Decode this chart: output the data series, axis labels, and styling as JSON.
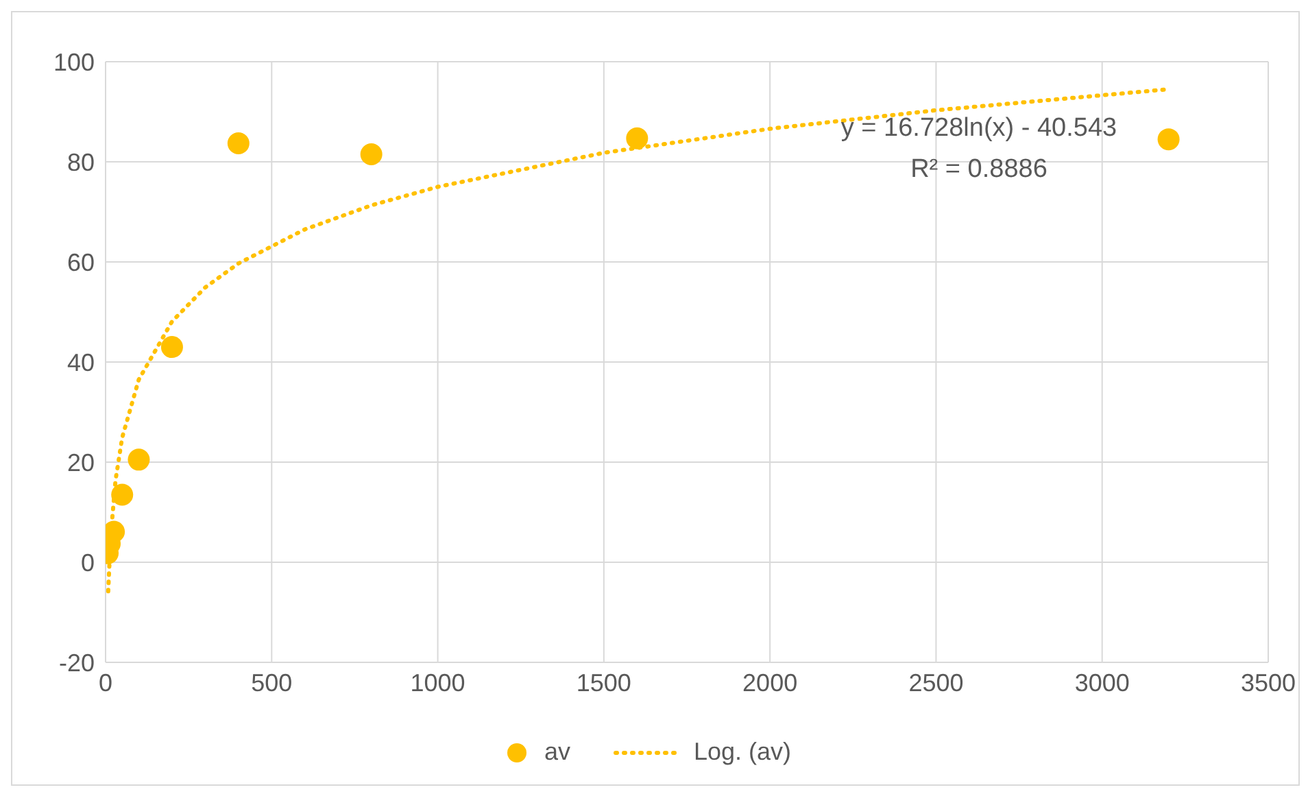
{
  "chart_data": {
    "type": "scatter",
    "xlim": [
      0,
      3500
    ],
    "xticks": [
      0,
      500,
      1000,
      1500,
      2000,
      2500,
      3000,
      3500
    ],
    "ylim": [
      -20,
      100
    ],
    "yticks": [
      -20,
      0,
      20,
      40,
      60,
      80,
      100
    ],
    "grid": true,
    "legend": "bottom",
    "annotations": [
      "y = 16.728ln(x) - 40.543",
      "R² = 0.8886"
    ],
    "series": [
      {
        "name": "av",
        "color": "#ffc000",
        "marker": "circle",
        "x": [
          6.25,
          12.5,
          25,
          50,
          100,
          200,
          400,
          800,
          1600,
          3200
        ],
        "values": [
          1.8,
          3.7,
          6.1,
          13.5,
          20.5,
          43,
          83.7,
          81.5,
          84.7,
          84.5
        ]
      },
      {
        "name": "Log. (av)",
        "type": "line",
        "color": "#ffc000",
        "marker": "none",
        "line_style": "dotted",
        "x": [
          8,
          15,
          30,
          50,
          100,
          200,
          300,
          400,
          600,
          800,
          1000,
          1500,
          2000,
          2500,
          3200
        ],
        "values": [
          -5.8,
          4.8,
          16.4,
          24.9,
          36.5,
          48.1,
          54.9,
          59.7,
          66.5,
          71.3,
          75.0,
          81.8,
          86.6,
          90.3,
          94.5
        ]
      }
    ]
  }
}
